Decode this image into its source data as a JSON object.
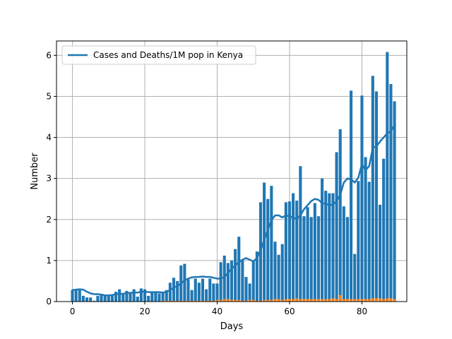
{
  "chart_data": {
    "type": "bar",
    "xlabel": "Days",
    "ylabel": "Number",
    "xlim": [
      -4.4,
      92.4
    ],
    "ylim": [
      0,
      6.35
    ],
    "xticks": [
      0,
      20,
      40,
      60,
      80
    ],
    "yticks": [
      0,
      1,
      2,
      3,
      4,
      5,
      6
    ],
    "grid": true,
    "legend": {
      "position": "top-left",
      "entries": [
        "Cases and Deaths/1M pop in Kenya"
      ]
    },
    "colors": {
      "cases": "#1f77b4",
      "deaths": "#ff7f0e",
      "grid": "#b0b0b0"
    },
    "series": [
      {
        "kind": "bar",
        "role": "cases",
        "values": [
          0.28,
          0.3,
          0.28,
          0.14,
          0.1,
          0.1,
          0.02,
          0.14,
          0.18,
          0.14,
          0.14,
          0.16,
          0.24,
          0.3,
          0.18,
          0.26,
          0.2,
          0.3,
          0.12,
          0.32,
          0.3,
          0.14,
          0.24,
          0.22,
          0.2,
          0.22,
          0.28,
          0.46,
          0.58,
          0.5,
          0.88,
          0.92,
          0.54,
          0.28,
          0.56,
          0.46,
          0.56,
          0.3,
          0.56,
          0.44,
          0.44,
          0.96,
          1.12,
          0.94,
          1.0,
          1.28,
          1.58,
          1.0,
          0.6,
          0.44,
          0.98,
          1.22,
          2.42,
          2.9,
          2.5,
          2.82,
          1.46,
          1.14,
          1.4,
          2.42,
          2.44,
          2.64,
          2.46,
          3.3,
          2.08,
          2.3,
          2.06,
          2.4,
          2.08,
          3.0,
          2.7,
          2.64,
          2.64,
          3.64,
          4.2,
          2.32,
          2.06,
          5.14,
          1.16,
          2.94,
          5.02,
          3.52,
          2.92,
          5.5,
          5.12,
          2.36,
          3.48,
          6.08,
          5.3,
          4.88
        ]
      },
      {
        "kind": "bar",
        "role": "deaths",
        "values": [
          0,
          0,
          0,
          0,
          0,
          0,
          0,
          0,
          0,
          0,
          0,
          0,
          0,
          0,
          0,
          0,
          0,
          0,
          0,
          0,
          0,
          0,
          0,
          0,
          0,
          0.02,
          0.02,
          0.02,
          0.02,
          0.02,
          0.02,
          0.02,
          0.02,
          0.02,
          0.02,
          0.02,
          0.02,
          0.02,
          0.02,
          0.02,
          0.04,
          0.04,
          0.06,
          0.06,
          0.04,
          0.04,
          0.04,
          0.02,
          0.02,
          0.04,
          0.04,
          0.02,
          0.02,
          0.04,
          0.04,
          0.04,
          0.06,
          0.06,
          0.04,
          0.06,
          0.06,
          0.06,
          0.08,
          0.06,
          0.06,
          0.06,
          0.06,
          0.06,
          0.06,
          0.06,
          0.06,
          0.06,
          0.08,
          0.06,
          0.16,
          0.06,
          0.06,
          0.06,
          0.06,
          0.06,
          0.06,
          0.06,
          0.06,
          0.08,
          0.08,
          0.08,
          0.06,
          0.08,
          0.08,
          0.06
        ]
      },
      {
        "kind": "line",
        "name": "Cases and Deaths/1M pop in Kenya",
        "values": [
          0.28,
          0.29,
          0.3,
          0.29,
          0.24,
          0.2,
          0.18,
          0.18,
          0.17,
          0.15,
          0.15,
          0.16,
          0.18,
          0.19,
          0.19,
          0.21,
          0.21,
          0.22,
          0.22,
          0.24,
          0.24,
          0.23,
          0.23,
          0.23,
          0.23,
          0.22,
          0.24,
          0.28,
          0.34,
          0.38,
          0.44,
          0.52,
          0.56,
          0.59,
          0.6,
          0.6,
          0.61,
          0.6,
          0.6,
          0.58,
          0.56,
          0.56,
          0.6,
          0.7,
          0.8,
          0.88,
          0.96,
          1.02,
          1.06,
          1.02,
          0.98,
          1.06,
          1.25,
          1.5,
          1.75,
          1.98,
          2.1,
          2.1,
          2.05,
          2.1,
          2.08,
          2.04,
          2.02,
          2.1,
          2.25,
          2.35,
          2.45,
          2.5,
          2.48,
          2.4,
          2.38,
          2.35,
          2.36,
          2.45,
          2.6,
          2.9,
          3.0,
          2.98,
          2.9,
          3.02,
          3.35,
          3.2,
          3.3,
          3.75,
          3.78,
          3.9,
          4.0,
          4.1,
          4.15,
          4.3
        ]
      }
    ]
  }
}
